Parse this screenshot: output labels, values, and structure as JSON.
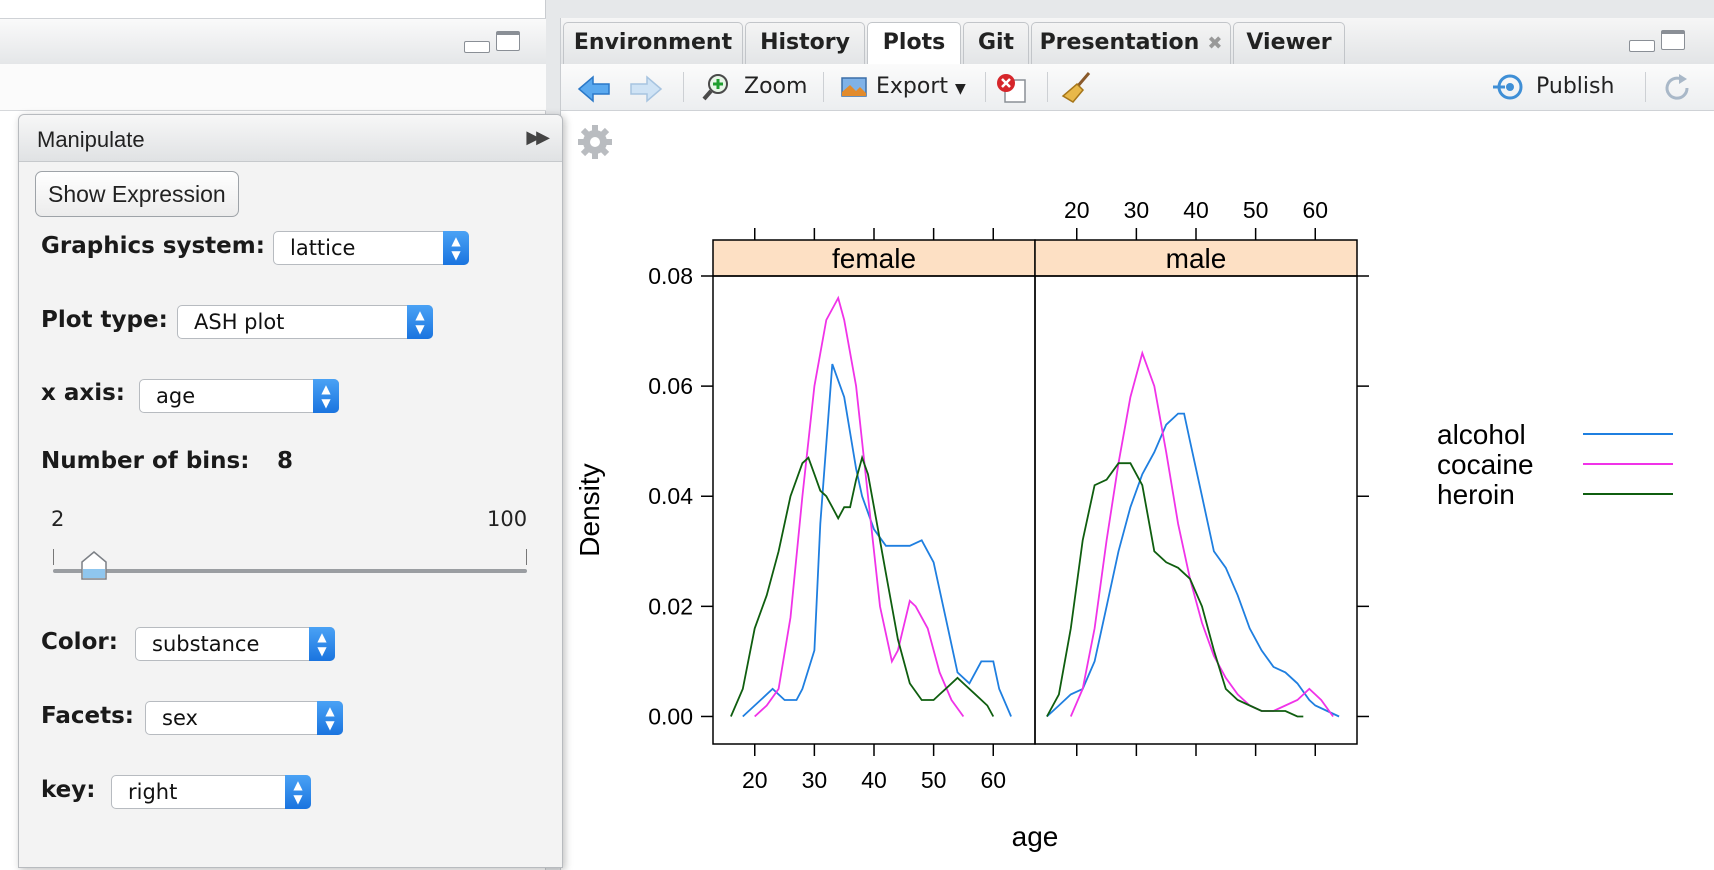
{
  "tabs": [
    {
      "label": "Environment"
    },
    {
      "label": "History"
    },
    {
      "label": "Plots"
    },
    {
      "label": "Git"
    },
    {
      "label": "Presentation",
      "close": "✖"
    },
    {
      "label": "Viewer"
    }
  ],
  "toolbar": {
    "zoom": "Zoom",
    "export": "Export",
    "publish": "Publish"
  },
  "manipulate": {
    "title": "Manipulate",
    "show_expression": "Show Expression",
    "graphics_label": "Graphics system:",
    "graphics_value": "lattice",
    "plottype_label": "Plot type:",
    "plottype_value": "ASH plot",
    "xaxis_label": "x axis:",
    "xaxis_value": "age",
    "bins_label": "Number of bins:",
    "bins_value": "8",
    "slider_min": "2",
    "slider_max": "100",
    "slider_fraction": 0.06,
    "color_label": "Color:",
    "color_value": "substance",
    "facets_label": "Facets:",
    "facets_value": "sex",
    "key_label": "key:",
    "key_value": "right"
  },
  "colors": {
    "alcohol": "#1f7fe0",
    "cocaine": "#f033e8",
    "heroin": "#0f5e0f",
    "strip": "#fde0c4"
  },
  "chart_data": {
    "type": "line",
    "xlabel": "age",
    "ylabel": "Density",
    "xlim": [
      13,
      67
    ],
    "ylim": [
      -0.005,
      0.08
    ],
    "x_ticks": [
      "20",
      "30",
      "40",
      "50",
      "60"
    ],
    "y_ticks": [
      "0.00",
      "0.02",
      "0.04",
      "0.06",
      "0.08"
    ],
    "panels": [
      {
        "name": "female",
        "series": [
          {
            "name": "alcohol",
            "x": [
              18,
              20,
              23,
              25,
              27,
              28,
              30,
              31,
              33,
              35,
              37,
              38,
              40,
              42,
              44,
              46,
              48,
              50,
              52,
              54,
              56,
              58,
              60,
              61,
              63
            ],
            "y": [
              0.0,
              0.002,
              0.005,
              0.003,
              0.003,
              0.005,
              0.012,
              0.035,
              0.064,
              0.058,
              0.045,
              0.04,
              0.034,
              0.031,
              0.031,
              0.031,
              0.032,
              0.028,
              0.018,
              0.008,
              0.006,
              0.01,
              0.01,
              0.005,
              0.0
            ]
          },
          {
            "name": "cocaine",
            "x": [
              20,
              22,
              24,
              26,
              28,
              30,
              32,
              34,
              35,
              37,
              39,
              41,
              43,
              44,
              46,
              47,
              49,
              51,
              53,
              55
            ],
            "y": [
              0.0,
              0.002,
              0.005,
              0.018,
              0.04,
              0.06,
              0.072,
              0.076,
              0.072,
              0.06,
              0.04,
              0.02,
              0.01,
              0.012,
              0.021,
              0.02,
              0.016,
              0.008,
              0.003,
              0.0
            ]
          },
          {
            "name": "heroin",
            "x": [
              16,
              18,
              20,
              22,
              24,
              26,
              28,
              29,
              30,
              31,
              32,
              33,
              34,
              35,
              36,
              37,
              38,
              39,
              40,
              42,
              44,
              46,
              48,
              50,
              51,
              52,
              54,
              55,
              57,
              59,
              60
            ],
            "y": [
              0.0,
              0.005,
              0.016,
              0.022,
              0.03,
              0.04,
              0.046,
              0.047,
              0.044,
              0.041,
              0.04,
              0.038,
              0.036,
              0.038,
              0.038,
              0.043,
              0.047,
              0.044,
              0.038,
              0.026,
              0.014,
              0.006,
              0.003,
              0.003,
              0.004,
              0.005,
              0.007,
              0.006,
              0.004,
              0.002,
              0.0
            ]
          }
        ]
      },
      {
        "name": "male",
        "series": [
          {
            "name": "alcohol",
            "x": [
              15,
              17,
              19,
              21,
              23,
              25,
              27,
              29,
              31,
              33,
              35,
              37,
              38,
              39,
              41,
              43,
              45,
              47,
              49,
              51,
              53,
              55,
              57,
              59,
              60,
              62,
              64
            ],
            "y": [
              0.0,
              0.002,
              0.004,
              0.005,
              0.01,
              0.02,
              0.03,
              0.038,
              0.044,
              0.048,
              0.053,
              0.055,
              0.055,
              0.05,
              0.04,
              0.03,
              0.027,
              0.022,
              0.016,
              0.012,
              0.009,
              0.008,
              0.006,
              0.003,
              0.002,
              0.001,
              0.0
            ]
          },
          {
            "name": "cocaine",
            "x": [
              19,
              21,
              23,
              25,
              27,
              29,
              31,
              33,
              35,
              37,
              39,
              41,
              43,
              45,
              47,
              49,
              51,
              53,
              55,
              57,
              59,
              61,
              63
            ],
            "y": [
              0.0,
              0.005,
              0.016,
              0.032,
              0.046,
              0.058,
              0.066,
              0.06,
              0.048,
              0.035,
              0.025,
              0.017,
              0.011,
              0.007,
              0.004,
              0.002,
              0.001,
              0.001,
              0.002,
              0.003,
              0.005,
              0.003,
              0.0
            ]
          },
          {
            "name": "heroin",
            "x": [
              15,
              17,
              19,
              21,
              23,
              25,
              27,
              29,
              31,
              33,
              35,
              37,
              39,
              41,
              43,
              45,
              47,
              49,
              51,
              53,
              55,
              57,
              58
            ],
            "y": [
              0.0,
              0.004,
              0.016,
              0.032,
              0.042,
              0.043,
              0.046,
              0.046,
              0.042,
              0.03,
              0.028,
              0.027,
              0.025,
              0.02,
              0.012,
              0.005,
              0.003,
              0.002,
              0.001,
              0.001,
              0.001,
              0.0,
              0.0
            ]
          }
        ]
      }
    ],
    "legend": [
      "alcohol",
      "cocaine",
      "heroin"
    ],
    "legend_position": "right"
  }
}
